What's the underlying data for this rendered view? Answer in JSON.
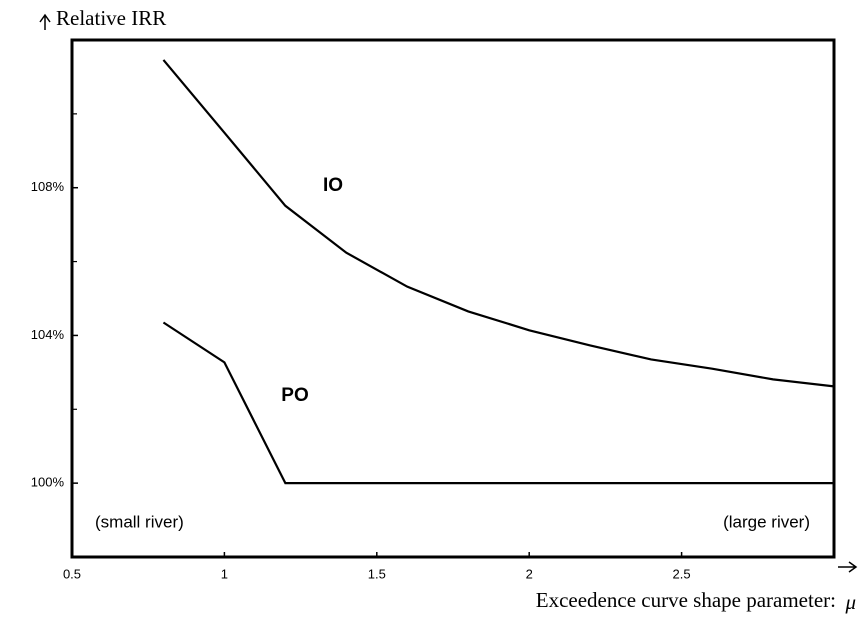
{
  "chart_data": {
    "type": "line",
    "y_label": "Relative IRR",
    "x_label": "Exceedence curve shape parameter:",
    "x_symbol": "μ",
    "xlim": [
      0.5,
      3
    ],
    "xticks": [
      0.5,
      1,
      1.5,
      2,
      2.5
    ],
    "ylim": [
      98,
      112
    ],
    "yticks": [
      {
        "value": 100,
        "label": "100%"
      },
      {
        "value": 104,
        "label": "104%"
      },
      {
        "value": 108,
        "label": "108%"
      }
    ],
    "yminor_ticks": [
      102,
      106,
      110
    ],
    "series": [
      {
        "name": "IO",
        "color": "#000000",
        "x": [
          0.8,
          1.0,
          1.2,
          1.4,
          1.6,
          1.8,
          2.0,
          2.2,
          2.4,
          2.6,
          2.8,
          3.0
        ],
        "values": [
          111.46,
          109.49,
          107.51,
          106.24,
          105.32,
          104.65,
          104.14,
          103.73,
          103.35,
          103.1,
          102.81,
          102.62
        ]
      },
      {
        "name": "PO",
        "color": "#000000",
        "x": [
          0.8,
          1.0,
          1.2,
          3.0
        ],
        "values": [
          104.35,
          103.27,
          100,
          100
        ]
      }
    ],
    "annotations": [
      "(small river)",
      "(large river)"
    ]
  }
}
